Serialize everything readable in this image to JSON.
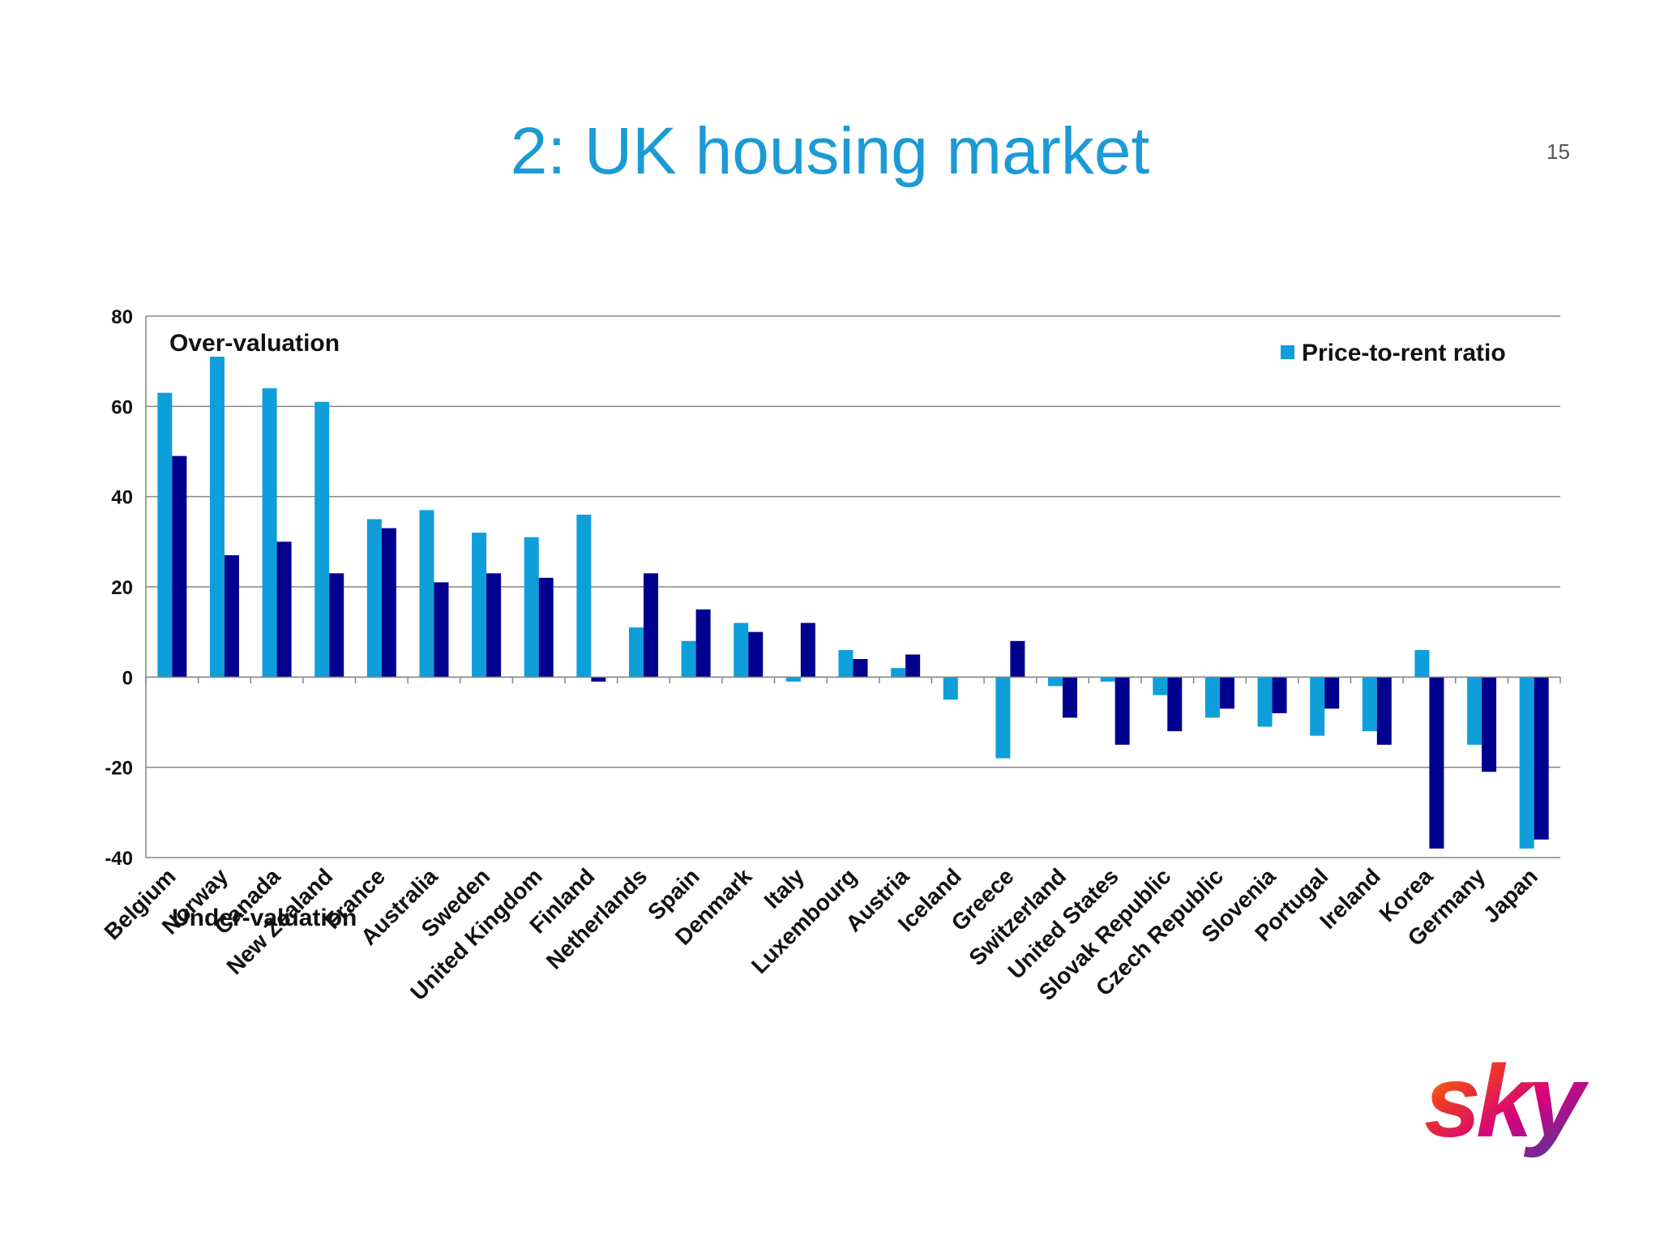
{
  "slide": {
    "title": "2: UK housing market",
    "page_number": "15"
  },
  "logo": {
    "text": "sky"
  },
  "colors": {
    "series1": "#0e9fdb",
    "series2": "#00008f",
    "title": "#1b9ad6",
    "grid": "#868686"
  },
  "chart_data": {
    "type": "bar",
    "categories": [
      "Belgium",
      "Norway",
      "Canada",
      "New Zealand",
      "France",
      "Australia",
      "Sweden",
      "United Kingdom",
      "Finland",
      "Netherlands",
      "Spain",
      "Denmark",
      "Italy",
      "Luxembourg",
      "Austria",
      "Iceland",
      "Greece",
      "Switzerland",
      "United States",
      "Slovak Republic",
      "Czech Republic",
      "Slovenia",
      "Portugal",
      "Ireland",
      "Korea",
      "Germany",
      "Japan"
    ],
    "series": [
      {
        "name": "Price-to-rent ratio",
        "values": [
          63,
          71,
          64,
          61,
          35,
          37,
          32,
          31,
          36,
          11,
          8,
          12,
          -1,
          6,
          2,
          -5,
          -18,
          -2,
          -1,
          -4,
          -9,
          -11,
          -13,
          -12,
          6,
          -15,
          -38
        ]
      },
      {
        "values": [
          49,
          27,
          30,
          23,
          33,
          21,
          23,
          22,
          -1,
          23,
          15,
          10,
          12,
          4,
          5,
          0,
          8,
          -9,
          -15,
          -12,
          -7,
          -8,
          -7,
          -15,
          -38,
          -21,
          -36
        ]
      }
    ],
    "ylim": [
      -40,
      80
    ],
    "yticks": [
      -40,
      -20,
      0,
      20,
      40,
      60,
      80
    ],
    "annotations": {
      "top": "Over-valuation",
      "bottom": "Under-valuation"
    },
    "legend": "top-right",
    "grid": true
  }
}
